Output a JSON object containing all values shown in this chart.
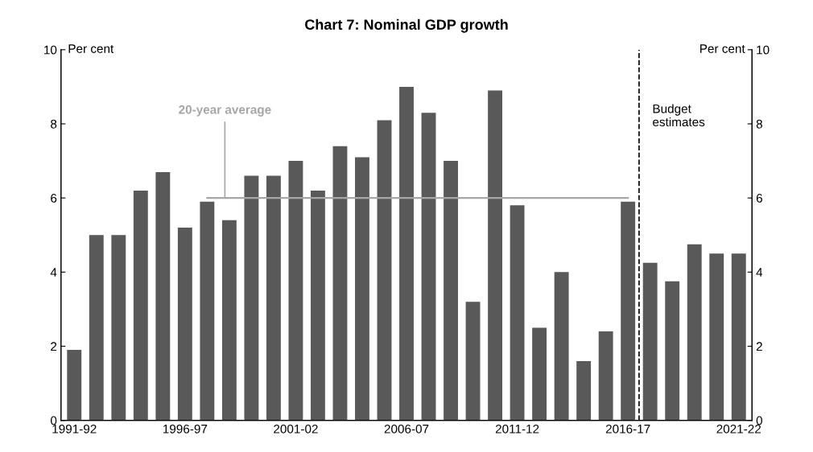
{
  "chart_data": {
    "type": "bar",
    "title": "Chart 7: Nominal GDP growth",
    "categories": [
      "1991-92",
      null,
      null,
      null,
      null,
      "1996-97",
      null,
      null,
      null,
      null,
      "2001-02",
      null,
      null,
      null,
      null,
      "2006-07",
      null,
      null,
      null,
      null,
      "2011-12",
      null,
      null,
      null,
      null,
      "2016-17",
      null,
      null,
      null,
      null,
      "2021-22"
    ],
    "series": [
      {
        "color": "#595959",
        "values": [
          1.9,
          5.0,
          5.0,
          6.2,
          6.7,
          5.2,
          5.9,
          5.4,
          6.6,
          6.6,
          7.0,
          6.2,
          7.4,
          7.1,
          8.1,
          9.0,
          8.3,
          7.0,
          3.2,
          8.9,
          5.8,
          2.5,
          4.0,
          1.6,
          2.4,
          5.9,
          4.25,
          3.75,
          4.75,
          4.5,
          4.5
        ]
      },
      {
        "type": "line",
        "name": "20-year average",
        "color": "#a6a6a6",
        "values": [
          null,
          null,
          null,
          null,
          null,
          null,
          6.0,
          6.0,
          6.0,
          6.0,
          6.0,
          6.0,
          6.0,
          6.0,
          6.0,
          6.0,
          6.0,
          6.0,
          6.0,
          6.0,
          6.0,
          6.0,
          6.0,
          6.0,
          6.0,
          6.0,
          null,
          null,
          null,
          null,
          null
        ]
      }
    ],
    "ylabel": "Per cent",
    "y2label": "Per cent",
    "ylim": [
      0,
      10
    ],
    "yticks": [
      0,
      2,
      4,
      6,
      8,
      10
    ],
    "y2lim": [
      0,
      10
    ],
    "y2ticks": [
      0,
      2,
      4,
      6,
      8,
      10
    ],
    "annotations": [
      "Budget\nestimates"
    ],
    "grid": false,
    "legend": false
  }
}
